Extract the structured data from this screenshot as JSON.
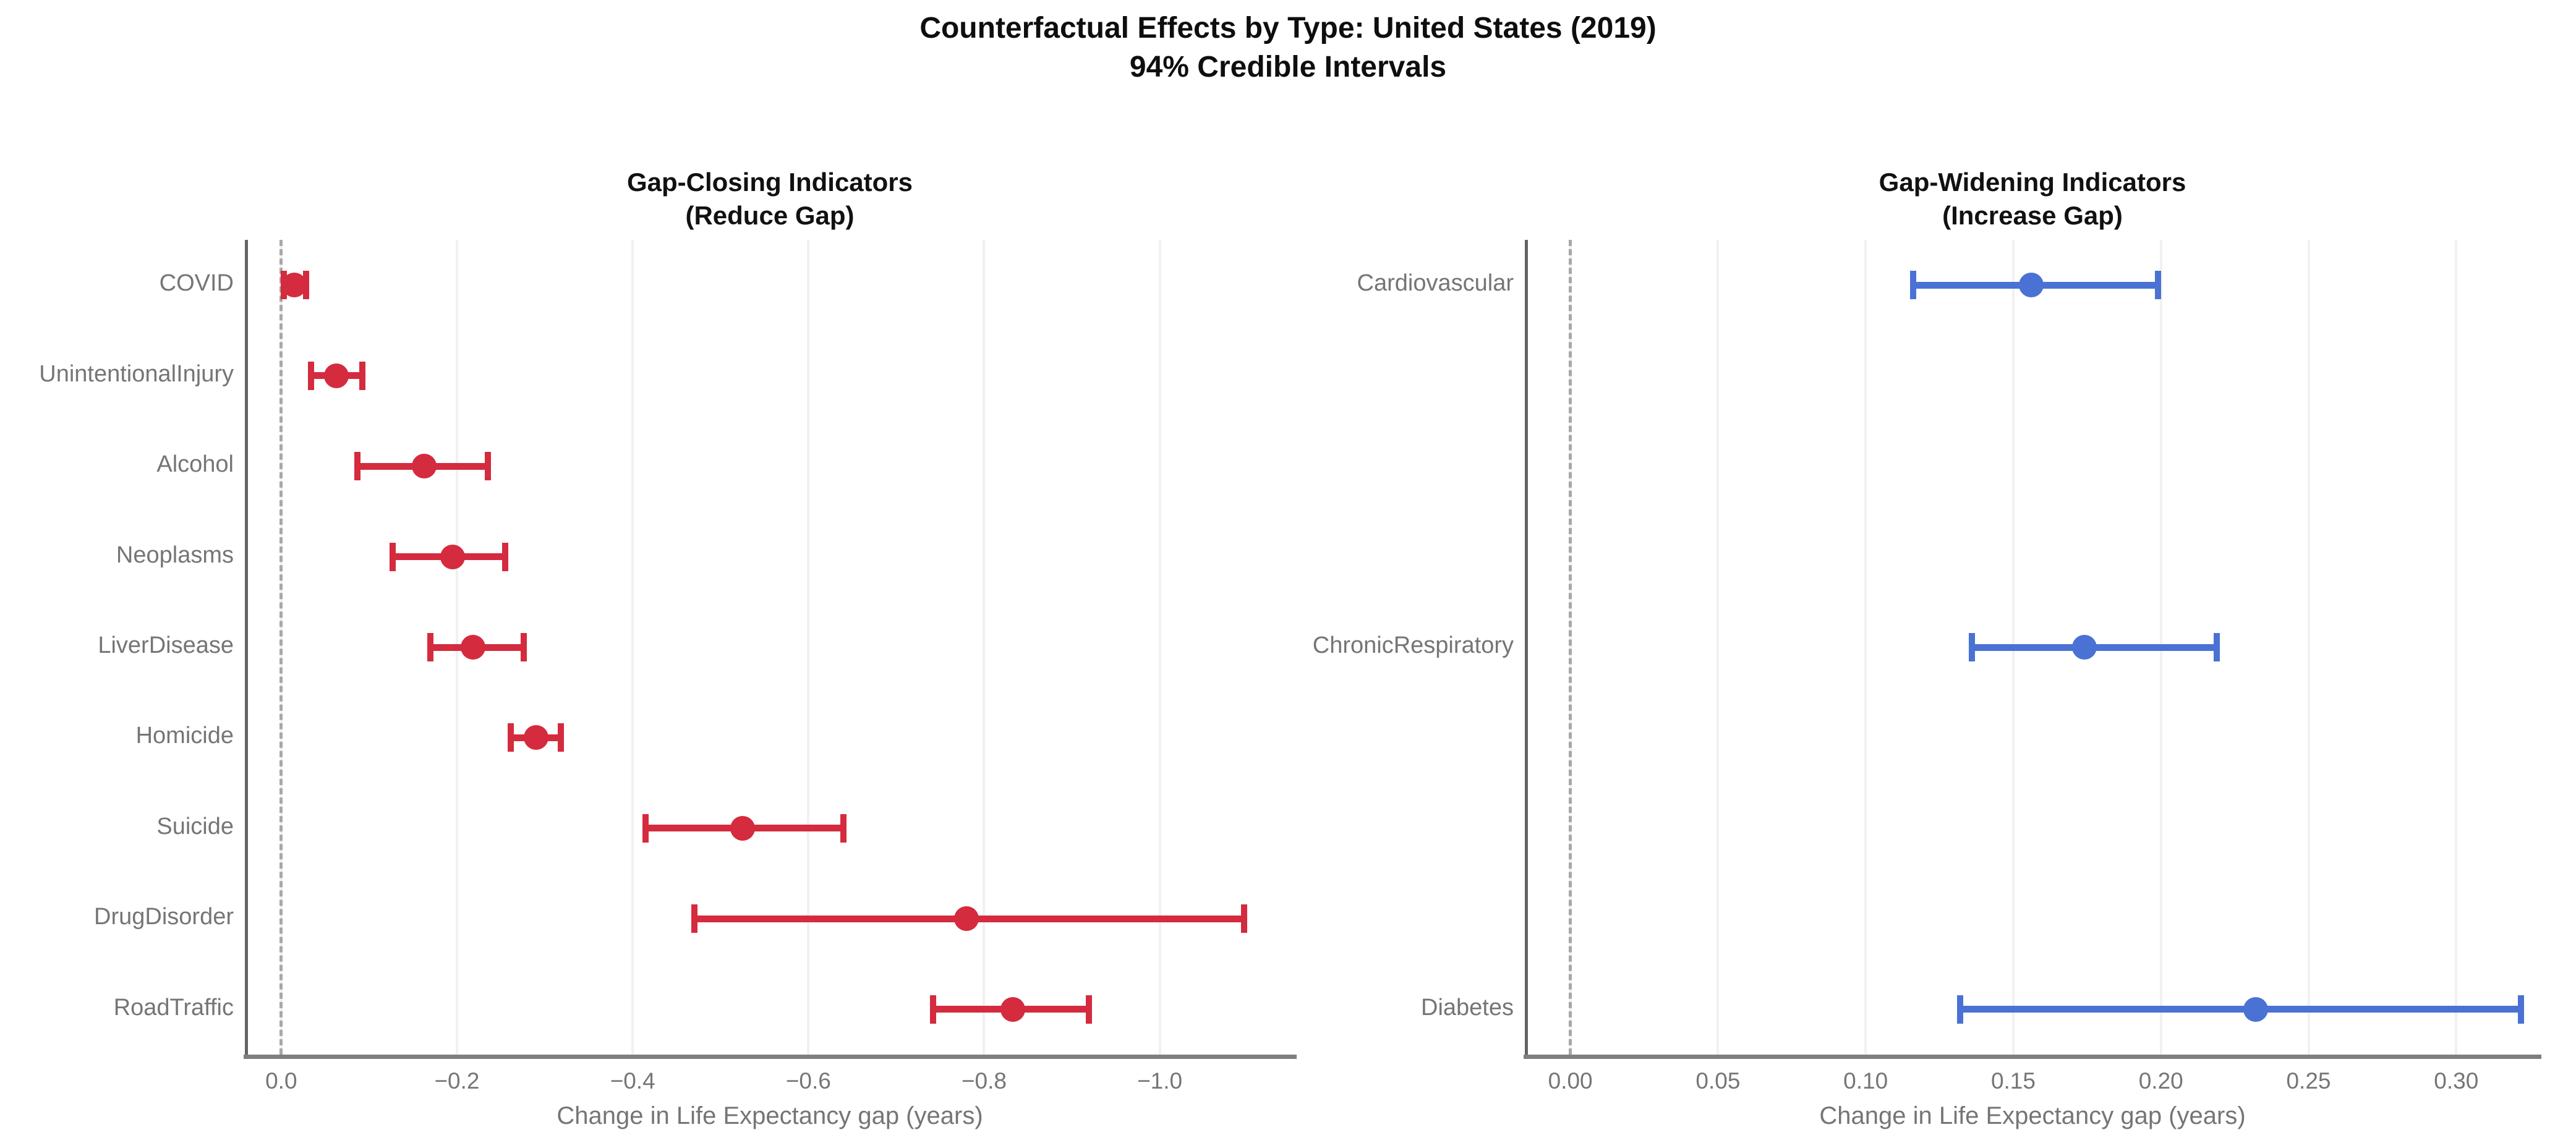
{
  "title": {
    "line1": "Counterfactual Effects by Type: United States (2019)",
    "line2": "94% Credible Intervals"
  },
  "colors": {
    "gap_closing_red": "#d42b3e",
    "gap_widening_blue": "#4a72d4",
    "zero_line_gray": "#a8a8a8",
    "grid_gray": "#f1f1f1",
    "spine_left_gray": "#636363",
    "spine_bottom_gray": "#7f7f7f",
    "text_gray": "#757575",
    "title_black": "#0e0e0e"
  },
  "chart_data": [
    {
      "type": "scatter",
      "subtype": "dot-and-whisker",
      "panel": "left",
      "title_line1": "Gap-Closing Indicators",
      "title_line2": "(Reduce Gap)",
      "xlabel": "Change in Life Expectancy gap (years)",
      "xlim": [
        0.04,
        -1.153
      ],
      "x_axis_inverted": true,
      "grid": "vertical-on",
      "legend": "none",
      "zero_line": 0.0,
      "xticks": [
        0.0,
        -0.2,
        -0.4,
        -0.6,
        -0.8,
        -1.0
      ],
      "xtick_labels": [
        "0.0",
        "−0.2",
        "−0.4",
        "−0.6",
        "−0.8",
        "−1.0"
      ],
      "n_slots": 9,
      "slots": [
        0,
        1,
        2,
        3,
        4,
        5,
        6,
        7,
        8
      ],
      "categories": [
        "COVID",
        "UnintentionalInjury",
        "Alcohol",
        "Neoplasms",
        "LiverDisease",
        "Homicide",
        "Suicide",
        "DrugDisorder",
        "RoadTraffic"
      ],
      "means": [
        -0.015,
        -0.063,
        -0.163,
        -0.195,
        -0.218,
        -0.29,
        -0.525,
        -0.78,
        -0.833
      ],
      "ci_low": [
        -0.003,
        -0.034,
        -0.087,
        -0.127,
        -0.17,
        -0.261,
        -0.415,
        -0.47,
        -0.742
      ],
      "ci_high": [
        -0.028,
        -0.092,
        -0.235,
        -0.255,
        -0.276,
        -0.318,
        -0.64,
        -1.096,
        -0.919
      ],
      "interval_note": "94% credible interval"
    },
    {
      "type": "scatter",
      "subtype": "dot-and-whisker",
      "panel": "right",
      "title_line1": "Gap-Widening Indicators",
      "title_line2": "(Increase Gap)",
      "xlabel": "Change in Life Expectancy gap (years)",
      "xlim": [
        -0.015,
        0.328
      ],
      "x_axis_inverted": false,
      "grid": "vertical-on",
      "legend": "none",
      "zero_line": 0.0,
      "xticks": [
        0.0,
        0.05,
        0.1,
        0.15,
        0.2,
        0.25,
        0.3
      ],
      "xtick_labels": [
        "0.00",
        "0.05",
        "0.10",
        "0.15",
        "0.20",
        "0.25",
        "0.30"
      ],
      "n_slots": 9,
      "slots": [
        0,
        4,
        8
      ],
      "categories": [
        "Cardiovascular",
        "ChronicRespiratory",
        "Diabetes"
      ],
      "means": [
        0.156,
        0.174,
        0.232
      ],
      "ci_low": [
        0.116,
        0.136,
        0.132
      ],
      "ci_high": [
        0.199,
        0.219,
        0.322
      ],
      "interval_note": "94% credible interval"
    }
  ]
}
